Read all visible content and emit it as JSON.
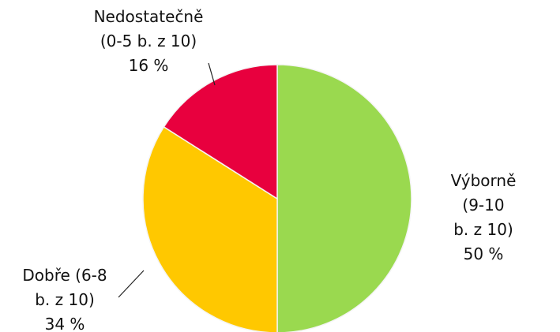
{
  "chart_data": {
    "type": "pie",
    "categories": [
      "Výborně  (9-10\nb. z 10)",
      "Dobře (6-8\nb. z 10)",
      "Nedostatečně\n(0-5 b. z 10)"
    ],
    "values": [
      50,
      34,
      16
    ],
    "value_labels": [
      "50 %",
      "34 %",
      "16 %"
    ],
    "colors": [
      "#9ad94f",
      "#ffc800",
      "#e8003e"
    ]
  }
}
